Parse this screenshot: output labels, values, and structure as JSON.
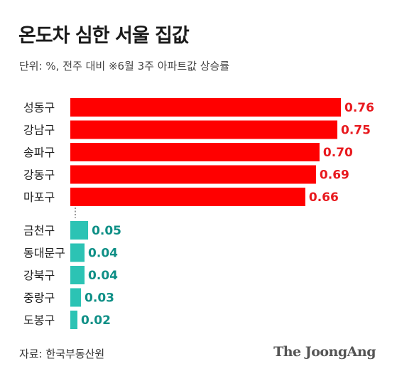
{
  "title": "온도차 심한 서울 집값",
  "subtitle": "단위: %, 전주 대비   ※6월 3주 아파트값 상승률",
  "source": "자료: 한국부동산원",
  "credit": "The JoongAng",
  "colors": {
    "top": "#ff0000",
    "top_label": "#e8191e",
    "bottom": "#2cc3b4",
    "bottom_label": "#0e8f86"
  },
  "chart_data": {
    "type": "bar",
    "orientation": "horizontal",
    "title": "온도차 심한 서울 집값",
    "subtitle": "단위: %, 전주 대비   ※6월 3주 아파트값 상승률",
    "groups": [
      {
        "group": "top",
        "categories": [
          "성동구",
          "강남구",
          "송파구",
          "강동구",
          "마포구"
        ],
        "values": [
          0.76,
          0.75,
          0.7,
          0.69,
          0.66
        ],
        "labels": [
          "0.76",
          "0.75",
          "0.70",
          "0.69",
          "0.66"
        ]
      },
      {
        "group": "bottom",
        "categories": [
          "금천구",
          "동대문구",
          "강북구",
          "중랑구",
          "도봉구"
        ],
        "values": [
          0.05,
          0.04,
          0.04,
          0.03,
          0.02
        ],
        "labels": [
          "0.05",
          "0.04",
          "0.04",
          "0.03",
          "0.02"
        ]
      }
    ],
    "xlim": [
      0,
      0.76
    ],
    "grid": false,
    "legend": "none"
  }
}
